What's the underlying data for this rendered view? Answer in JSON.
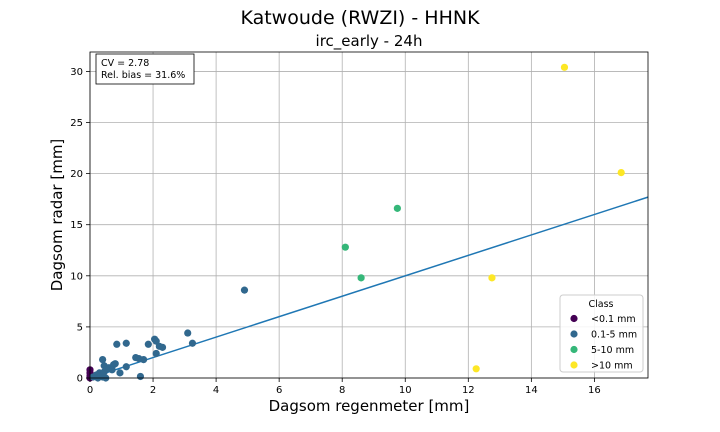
{
  "figure": {
    "suptitle": "Katwoude (RWZI) - HHNK",
    "stats": [
      "CV = 2.78",
      "Rel. bias = 31.6%"
    ]
  },
  "chart_data": {
    "type": "scatter",
    "title": "irc_early - 24h",
    "xlabel": "Dagsom regenmeter [mm]",
    "ylabel": "Dagsom radar [mm]",
    "xlim": [
      0,
      17.7
    ],
    "ylim": [
      0,
      31.9
    ],
    "xticks": [
      0,
      2,
      4,
      6,
      8,
      10,
      12,
      14,
      16
    ],
    "yticks": [
      0,
      5,
      10,
      15,
      20,
      25,
      30
    ],
    "grid": true,
    "legend": {
      "title": "Class",
      "position": "lower-right"
    },
    "series": [
      {
        "name": "<0.1 mm",
        "color": "#440154",
        "points": [
          [
            0,
            0.8
          ],
          [
            0,
            0.5
          ],
          [
            0,
            0.2
          ],
          [
            0,
            0
          ]
        ]
      },
      {
        "name": "0.1-5 mm",
        "color": "#31688e",
        "points": [
          [
            0.1,
            0.1
          ],
          [
            0.2,
            0.3
          ],
          [
            0.25,
            0.0
          ],
          [
            0.3,
            0.5
          ],
          [
            0.35,
            0.2
          ],
          [
            0.4,
            0.1
          ],
          [
            0.45,
            0.6
          ],
          [
            0.5,
            0.0
          ],
          [
            0.4,
            1.8
          ],
          [
            0.45,
            1.2
          ],
          [
            0.55,
            0.9
          ],
          [
            0.6,
            1.0
          ],
          [
            0.7,
            0.8
          ],
          [
            0.75,
            1.3
          ],
          [
            0.8,
            1.4
          ],
          [
            0.85,
            3.3
          ],
          [
            0.95,
            0.5
          ],
          [
            1.15,
            3.4
          ],
          [
            1.15,
            1.1
          ],
          [
            1.45,
            2.0
          ],
          [
            1.55,
            1.9
          ],
          [
            1.6,
            0.15
          ],
          [
            1.7,
            1.8
          ],
          [
            1.85,
            3.3
          ],
          [
            2.05,
            3.8
          ],
          [
            2.1,
            3.6
          ],
          [
            2.1,
            2.4
          ],
          [
            2.2,
            3.1
          ],
          [
            2.3,
            3.0
          ],
          [
            3.1,
            4.4
          ],
          [
            3.25,
            3.4
          ],
          [
            4.9,
            8.6
          ]
        ]
      },
      {
        "name": "5-10 mm",
        "color": "#35b779",
        "points": [
          [
            8.1,
            12.8
          ],
          [
            8.6,
            9.8
          ],
          [
            9.75,
            16.6
          ]
        ]
      },
      {
        "name": ">10 mm",
        "color": "#fde725",
        "points": [
          [
            12.25,
            0.9
          ],
          [
            12.75,
            9.8
          ],
          [
            15.05,
            30.4
          ],
          [
            16.85,
            20.1
          ]
        ]
      }
    ],
    "fit_line": {
      "color": "#1f77b4",
      "points": [
        [
          0,
          0
        ],
        [
          17.7,
          17.7
        ]
      ]
    }
  }
}
